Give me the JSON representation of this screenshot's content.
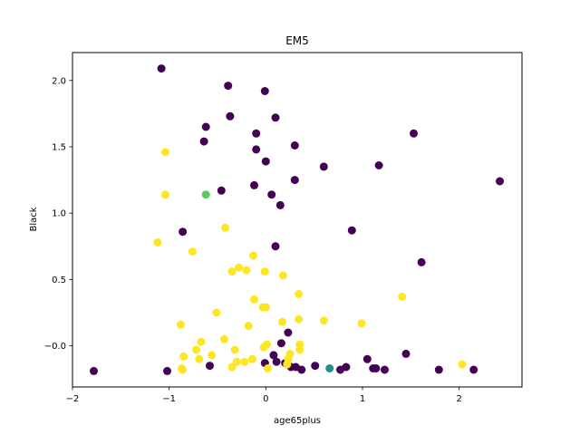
{
  "chart_data": {
    "type": "scatter",
    "title": "EM5",
    "xlabel": "age65plus",
    "ylabel": "Black",
    "xlim": [
      -2.0,
      2.65
    ],
    "ylim": [
      -0.31,
      2.21
    ],
    "xticks": [
      -2,
      -1,
      0,
      1,
      2
    ],
    "yticks": [
      -0.0,
      0.5,
      1.0,
      1.5,
      2.0
    ],
    "xtick_labels": [
      "−2",
      "−1",
      "0",
      "1",
      "2"
    ],
    "ytick_labels": [
      "−0.0",
      "0.5",
      "1.0",
      "1.5",
      "2.0"
    ],
    "grid": false,
    "colors": {
      "dark_purple": "#440154",
      "teal": "#21918c",
      "green": "#5ec962",
      "yellow": "#fde725"
    },
    "series": [
      {
        "color": "#440154",
        "points": [
          [
            -1.08,
            2.09
          ],
          [
            -0.39,
            1.96
          ],
          [
            -0.01,
            1.92
          ],
          [
            0.1,
            1.72
          ],
          [
            -0.37,
            1.73
          ],
          [
            -0.62,
            1.65
          ],
          [
            -0.64,
            1.54
          ],
          [
            -0.1,
            1.6
          ],
          [
            1.53,
            1.6
          ],
          [
            0.3,
            1.51
          ],
          [
            -0.1,
            1.48
          ],
          [
            0.6,
            1.35
          ],
          [
            1.17,
            1.36
          ],
          [
            0.0,
            1.39
          ],
          [
            2.42,
            1.24
          ],
          [
            0.3,
            1.25
          ],
          [
            -0.12,
            1.21
          ],
          [
            -0.46,
            1.17
          ],
          [
            0.06,
            1.14
          ],
          [
            0.15,
            1.06
          ],
          [
            -0.86,
            0.86
          ],
          [
            0.89,
            0.87
          ],
          [
            0.1,
            0.75
          ],
          [
            1.61,
            0.63
          ],
          [
            0.23,
            0.1
          ],
          [
            0.16,
            0.02
          ],
          [
            1.45,
            -0.06
          ],
          [
            1.05,
            -0.1
          ],
          [
            0.08,
            -0.07
          ],
          [
            -0.01,
            -0.13
          ],
          [
            0.11,
            -0.12
          ],
          [
            0.2,
            -0.13
          ],
          [
            0.26,
            -0.16
          ],
          [
            0.31,
            -0.16
          ],
          [
            0.37,
            -0.18
          ],
          [
            0.51,
            -0.15
          ],
          [
            -0.58,
            -0.15
          ],
          [
            0.77,
            -0.18
          ],
          [
            0.83,
            -0.16
          ],
          [
            1.11,
            -0.17
          ],
          [
            1.14,
            -0.17
          ],
          [
            1.23,
            -0.18
          ],
          [
            1.79,
            -0.18
          ],
          [
            2.15,
            -0.18
          ],
          [
            -1.78,
            -0.19
          ],
          [
            -1.02,
            -0.19
          ]
        ]
      },
      {
        "color": "#21918c",
        "points": [
          [
            0.66,
            -0.17
          ]
        ]
      },
      {
        "color": "#5ec962",
        "points": [
          [
            -0.62,
            1.14
          ]
        ]
      },
      {
        "color": "#fde725",
        "points": [
          [
            -1.04,
            1.46
          ],
          [
            -1.04,
            1.14
          ],
          [
            -0.42,
            0.89
          ],
          [
            -1.12,
            0.78
          ],
          [
            -0.76,
            0.71
          ],
          [
            -0.13,
            0.68
          ],
          [
            -0.28,
            0.59
          ],
          [
            -0.2,
            0.57
          ],
          [
            -0.35,
            0.56
          ],
          [
            -0.01,
            0.56
          ],
          [
            0.18,
            0.53
          ],
          [
            1.41,
            0.37
          ],
          [
            0.34,
            0.39
          ],
          [
            -0.12,
            0.35
          ],
          [
            0.0,
            0.29
          ],
          [
            -0.03,
            0.29
          ],
          [
            -0.51,
            0.25
          ],
          [
            0.34,
            0.2
          ],
          [
            0.6,
            0.19
          ],
          [
            0.17,
            0.18
          ],
          [
            0.99,
            0.17
          ],
          [
            -0.88,
            0.16
          ],
          [
            -0.18,
            0.15
          ],
          [
            -0.43,
            0.05
          ],
          [
            -0.67,
            0.03
          ],
          [
            0.35,
            0.01
          ],
          [
            0.01,
            0.01
          ],
          [
            -0.02,
            -0.01
          ],
          [
            -0.72,
            -0.03
          ],
          [
            -0.32,
            -0.03
          ],
          [
            0.35,
            -0.03
          ],
          [
            -0.56,
            -0.07
          ],
          [
            -0.85,
            -0.08
          ],
          [
            0.25,
            -0.06
          ],
          [
            -0.14,
            -0.1
          ],
          [
            0.23,
            -0.1
          ],
          [
            -0.69,
            -0.1
          ],
          [
            -0.3,
            -0.12
          ],
          [
            -0.22,
            -0.12
          ],
          [
            -0.35,
            -0.16
          ],
          [
            0.02,
            -0.17
          ],
          [
            0.22,
            -0.14
          ],
          [
            2.03,
            -0.14
          ],
          [
            -0.86,
            -0.18
          ],
          [
            -0.87,
            -0.17
          ]
        ]
      }
    ]
  }
}
